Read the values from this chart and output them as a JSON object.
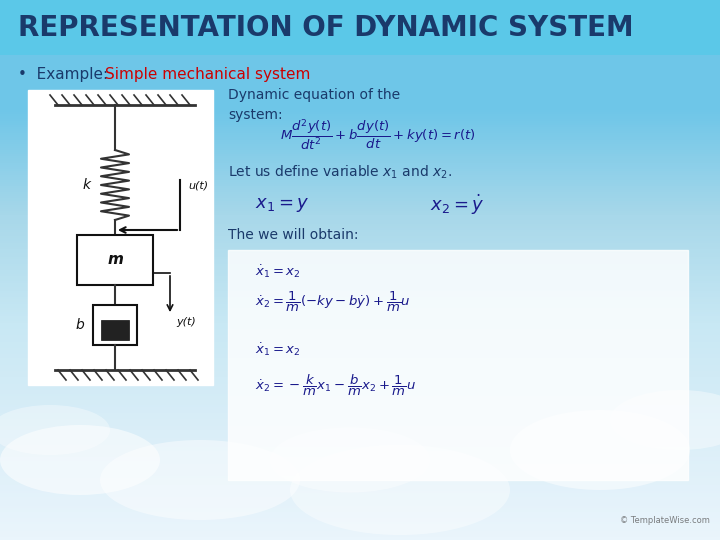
{
  "title": "REPRESENTATION OF DYNAMIC SYSTEM",
  "title_color": "#1a3a6b",
  "title_bg_color": "#5bc8e8",
  "bullet_normal": "Example: ",
  "bullet_highlight": "Simple mechanical system",
  "bullet_color_normal": "#1a3a6b",
  "bullet_color_highlight": "#cc0000",
  "dynamic_label": "Dynamic equation of the\nsystem:",
  "let_define": "Let us define variable ",
  "then_text": "The we will obtain:",
  "bg_top_color": "#6ec6e8",
  "bg_bottom_color": "#d0e8f5",
  "text_color": "#1a3a6b",
  "eq_color": "#1a1a8c",
  "watermark": "© TemplateWise.com"
}
